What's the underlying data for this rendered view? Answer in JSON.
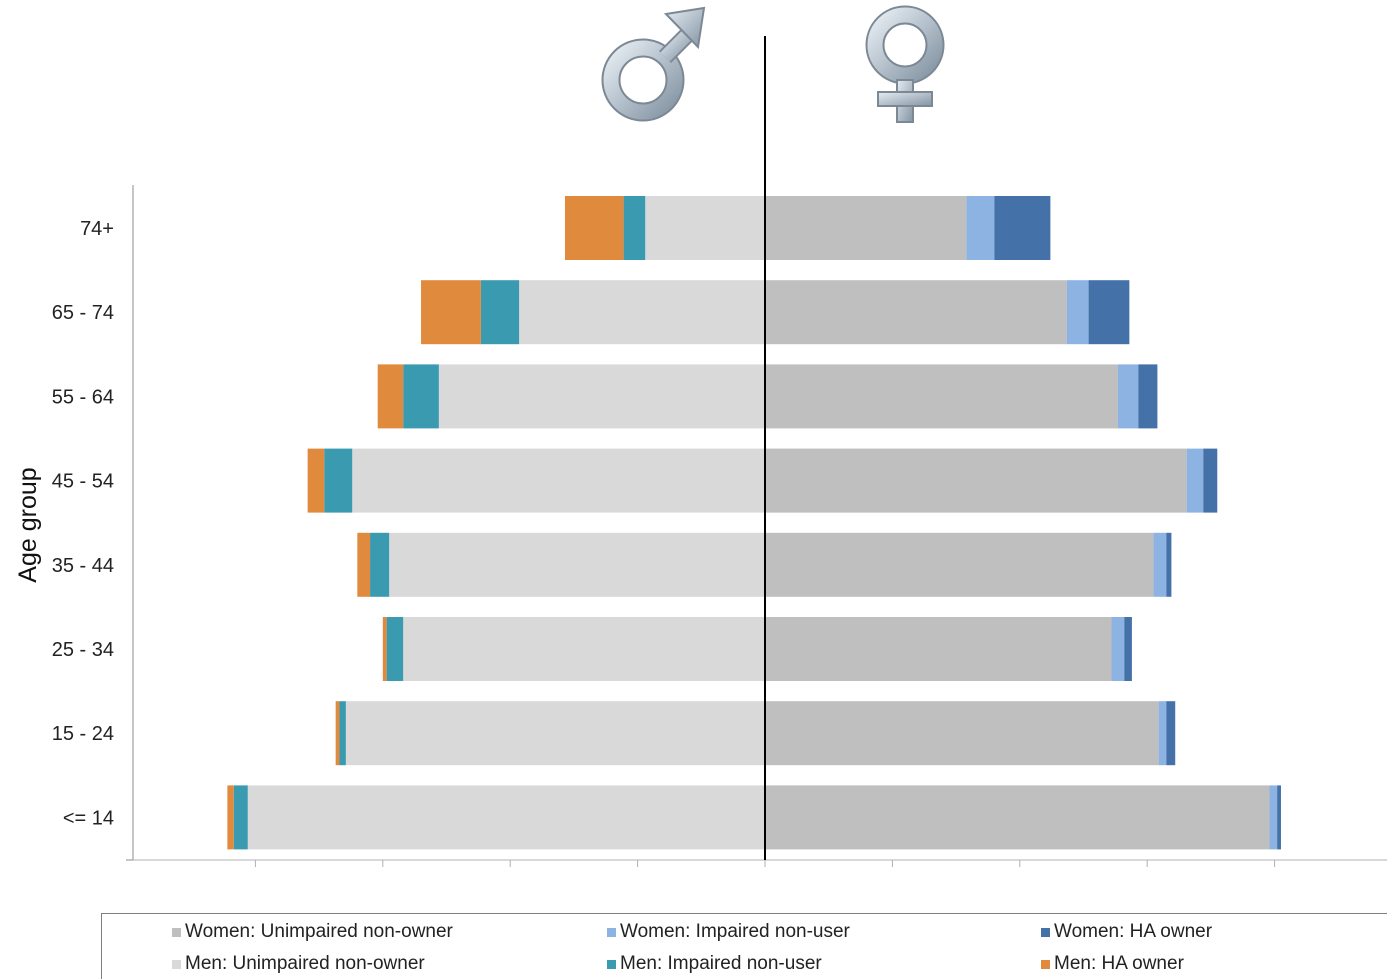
{
  "chart_data": {
    "type": "bar",
    "subtype": "population-pyramid-stacked",
    "title": "",
    "ylabel": "Age group",
    "xlabel": "",
    "grid": false,
    "legend_position": "bottom",
    "icons": {
      "left": "male-symbol-icon",
      "right": "female-symbol-icon"
    },
    "categories": [
      "74+",
      "65 - 74",
      "55 - 64",
      "45 - 54",
      "35 - 44",
      "25 - 34",
      "15 - 24",
      "<= 14"
    ],
    "xlim": [
      -5,
      5
    ],
    "series": [
      {
        "name": "Women:  Unimpaired non-owner",
        "side": "right",
        "color": "#bfbfbf",
        "values": [
          1.58,
          2.37,
          2.77,
          3.31,
          3.05,
          2.72,
          3.09,
          3.96
        ]
      },
      {
        "name": "Women: Impaired non-user",
        "side": "right",
        "color": "#8db3e2",
        "values": [
          0.22,
          0.17,
          0.16,
          0.13,
          0.1,
          0.1,
          0.06,
          0.06
        ]
      },
      {
        "name": "Women: HA owner",
        "side": "right",
        "color": "#4472a8",
        "values": [
          0.44,
          0.32,
          0.15,
          0.11,
          0.04,
          0.06,
          0.07,
          0.03
        ]
      },
      {
        "name": "Men:  Unimpaired non-owner",
        "side": "left",
        "color": "#d9d9d9",
        "values": [
          0.94,
          1.93,
          2.56,
          3.24,
          2.95,
          2.84,
          3.29,
          4.06
        ]
      },
      {
        "name": "Men: Impaired non-user",
        "side": "left",
        "color": "#3a9ab0",
        "values": [
          0.17,
          0.3,
          0.28,
          0.22,
          0.15,
          0.13,
          0.05,
          0.11
        ]
      },
      {
        "name": "Men: HA owner",
        "side": "left",
        "color": "#e08a3e",
        "values": [
          0.46,
          0.47,
          0.2,
          0.13,
          0.1,
          0.03,
          0.03,
          0.05
        ]
      }
    ],
    "legend": {
      "rows": [
        [
          "Women:  Unimpaired non-owner",
          "Women: Impaired non-user",
          "Women: HA owner"
        ],
        [
          "Men:  Unimpaired non-owner",
          "Men: Impaired non-user",
          "Men: HA owner"
        ]
      ]
    }
  }
}
